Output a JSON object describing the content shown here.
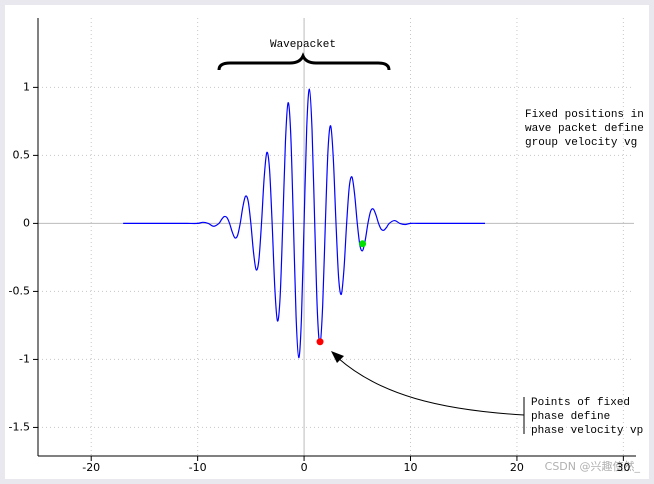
{
  "chart_data": {
    "type": "line",
    "x": [
      -17,
      -16,
      -15,
      -14,
      -13,
      -12,
      -11,
      -10,
      -9.5,
      -9,
      -8.5,
      -8,
      -7.75,
      -7.5,
      -7.25,
      -7,
      -6.75,
      -6.5,
      -6.25,
      -6,
      -5.75,
      -5.5,
      -5.25,
      -5,
      -4.75,
      -4.5,
      -4.25,
      -4,
      -3.75,
      -3.5,
      -3.25,
      -3,
      -2.75,
      -2.5,
      -2.25,
      -2,
      -1.75,
      -1.5,
      -1.25,
      -1,
      -0.75,
      -0.5,
      -0.25,
      0,
      0.25,
      0.5,
      0.75,
      1,
      1.25,
      1.5,
      1.75,
      2,
      2.25,
      2.5,
      2.75,
      3,
      3.25,
      3.5,
      3.75,
      4,
      4.25,
      4.5,
      4.75,
      5,
      5.25,
      5.5,
      5.75,
      6,
      6.25,
      6.5,
      6.75,
      7,
      7.25,
      7.5,
      7.75,
      8,
      8.5,
      9,
      9.5,
      10,
      11,
      12,
      13,
      14,
      15,
      16,
      17
    ],
    "values": [
      0,
      0,
      0,
      0,
      0,
      0,
      0,
      0,
      0.008,
      0,
      -0.021,
      0,
      0.029,
      0.05,
      0.043,
      0,
      -0.063,
      -0.106,
      -0.089,
      0,
      0.122,
      0.2,
      0.163,
      0,
      -0.213,
      -0.341,
      -0.271,
      0,
      0.335,
      0.521,
      0.403,
      0,
      -0.473,
      -0.717,
      -0.54,
      0,
      0.601,
      0.887,
      0.651,
      0,
      -0.686,
      -0.987,
      -0.705,
      0,
      0.705,
      0.987,
      0.686,
      0,
      -0.651,
      -0.887,
      -0.601,
      0,
      0.54,
      0.717,
      0.473,
      0,
      -0.403,
      -0.521,
      -0.335,
      0,
      0.271,
      0.341,
      0.213,
      0,
      -0.163,
      -0.2,
      -0.122,
      0,
      0.089,
      0.106,
      0.063,
      0,
      -0.043,
      -0.05,
      -0.029,
      0,
      0.021,
      0,
      -0.008,
      0,
      0,
      0,
      0,
      0,
      0,
      0,
      0
    ],
    "color": "#0000ff",
    "markers": [
      {
        "x": 1.5,
        "y": -0.87,
        "color": "#ff0000"
      },
      {
        "x": 5.5,
        "y": -0.15,
        "color": "#00e000"
      }
    ],
    "xlim": [
      -25,
      31
    ],
    "ylim": [
      -1.71,
      1.51
    ],
    "xticks": [
      -20,
      -10,
      0,
      10,
      20,
      30
    ],
    "yticks": [
      -1.5,
      -1,
      -0.5,
      0,
      0.5,
      1
    ],
    "grid": true,
    "annotations": {
      "wavepacket": "Wavepacket",
      "group": [
        "Fixed positions in",
        "wave packet define",
        "group velocity vg"
      ],
      "phase": [
        "Points of fixed",
        "phase define",
        "phase velocity vp"
      ]
    },
    "watermark": "CSDN @兴趣使然_"
  }
}
